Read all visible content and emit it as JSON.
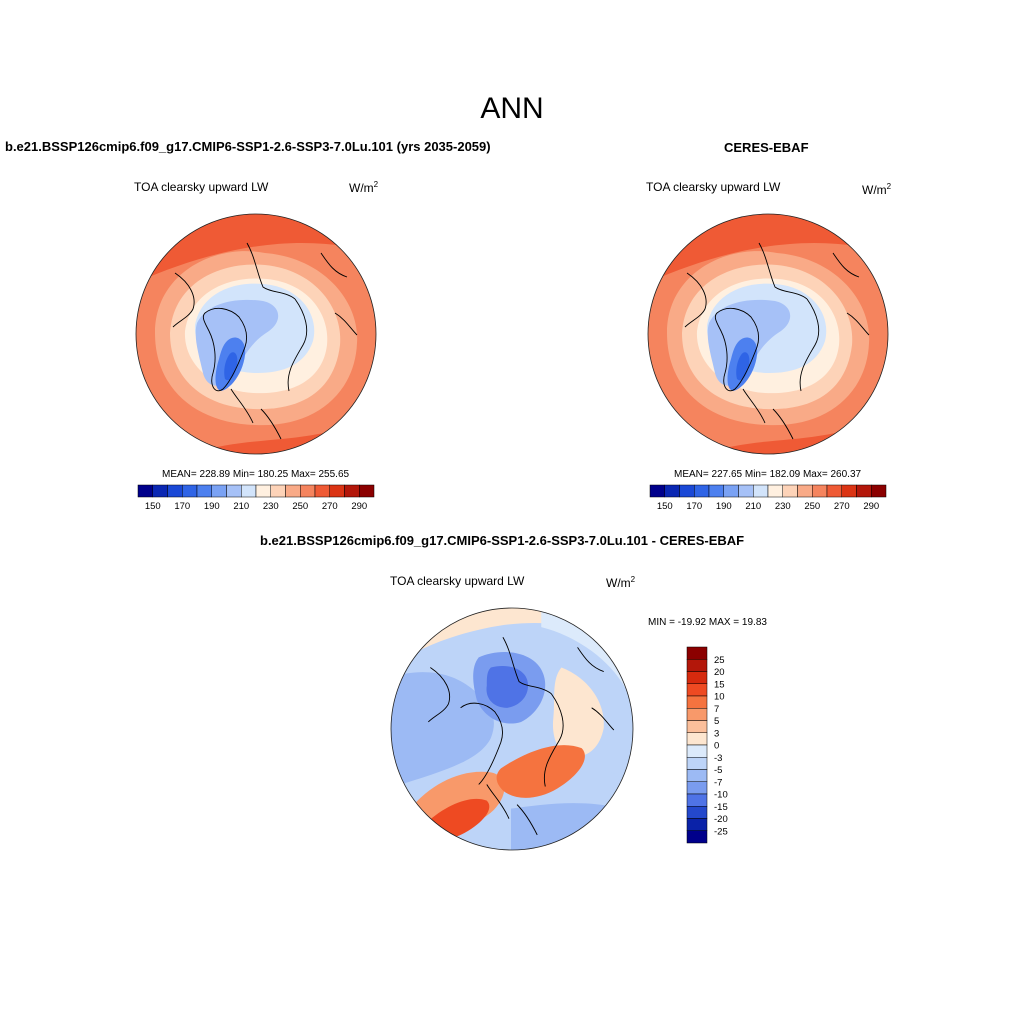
{
  "page_title": "ANN",
  "chart_data": [
    {
      "type": "heatmap",
      "panel": "model",
      "title": "b.e21.BSSP126cmip6.f09_g17.CMIP6-SSP1-2.6-SSP3-7.0Lu.101 (yrs 2035-2059)",
      "variable": "TOA clearsky upward LW",
      "units": "W/m",
      "units_exp": "2",
      "projection": "north polar stereographic",
      "stats_text": "MEAN= 228.89  Min= 180.25  Max= 255.65",
      "mean": 228.89,
      "min": 180.25,
      "max": 255.65,
      "colorbar": {
        "orientation": "horizontal",
        "levels": [
          150,
          160,
          170,
          180,
          190,
          200,
          210,
          220,
          230,
          240,
          250,
          260,
          270,
          280,
          290
        ],
        "tick_labels": [
          "150",
          "170",
          "190",
          "210",
          "230",
          "250",
          "270",
          "290"
        ],
        "colors": [
          "#00008b",
          "#0a27b3",
          "#1a48d6",
          "#2f64e6",
          "#4d80ef",
          "#7aa2f4",
          "#a6c1f7",
          "#d2e4fb",
          "#fff0e0",
          "#fdd3b8",
          "#f9aa87",
          "#f5845e",
          "#ef5a35",
          "#db3414",
          "#b3170a",
          "#8b0000"
        ]
      }
    },
    {
      "type": "heatmap",
      "panel": "obs",
      "title": "CERES-EBAF",
      "variable": "TOA clearsky upward LW",
      "units": "W/m",
      "units_exp": "2",
      "projection": "north polar stereographic",
      "stats_text": "MEAN= 227.65  Min= 182.09  Max= 260.37",
      "mean": 227.65,
      "min": 182.09,
      "max": 260.37,
      "colorbar": {
        "orientation": "horizontal",
        "levels": [
          150,
          160,
          170,
          180,
          190,
          200,
          210,
          220,
          230,
          240,
          250,
          260,
          270,
          280,
          290
        ],
        "tick_labels": [
          "150",
          "170",
          "190",
          "210",
          "230",
          "250",
          "270",
          "290"
        ],
        "colors": [
          "#00008b",
          "#0a27b3",
          "#1a48d6",
          "#2f64e6",
          "#4d80ef",
          "#7aa2f4",
          "#a6c1f7",
          "#d2e4fb",
          "#fff0e0",
          "#fdd3b8",
          "#f9aa87",
          "#f5845e",
          "#ef5a35",
          "#db3414",
          "#b3170a",
          "#8b0000"
        ]
      }
    },
    {
      "type": "heatmap",
      "panel": "diff",
      "title": "b.e21.BSSP126cmip6.f09_g17.CMIP6-SSP1-2.6-SSP3-7.0Lu.101 - CERES-EBAF",
      "variable": "TOA clearsky upward LW",
      "units": "W/m",
      "units_exp": "2",
      "projection": "north polar stereographic",
      "stats_text": "MIN = -19.92 MAX =  19.83",
      "min": -19.92,
      "max": 19.83,
      "colorbar": {
        "orientation": "vertical",
        "levels": [
          25,
          20,
          15,
          10,
          7,
          5,
          3,
          0,
          -3,
          -5,
          -7,
          -10,
          -15,
          -20,
          -25
        ],
        "tick_labels": [
          "25",
          "20",
          "15",
          "10",
          "7",
          "5",
          "3",
          "0",
          "-3",
          "-5",
          "-7",
          "-10",
          "-15",
          "-20",
          "-25"
        ],
        "colors": [
          "#8b0000",
          "#b3170a",
          "#d62a0e",
          "#ee4a22",
          "#f5733f",
          "#f8996a",
          "#fbbf9b",
          "#fde6d0",
          "#dceafb",
          "#bdd4f8",
          "#9cbaf4",
          "#7a9cef",
          "#4f73e6",
          "#2448cc",
          "#0a22a8",
          "#00008b"
        ]
      }
    }
  ],
  "palettes": {
    "land_line": "#000000",
    "map_border": "#222222"
  }
}
